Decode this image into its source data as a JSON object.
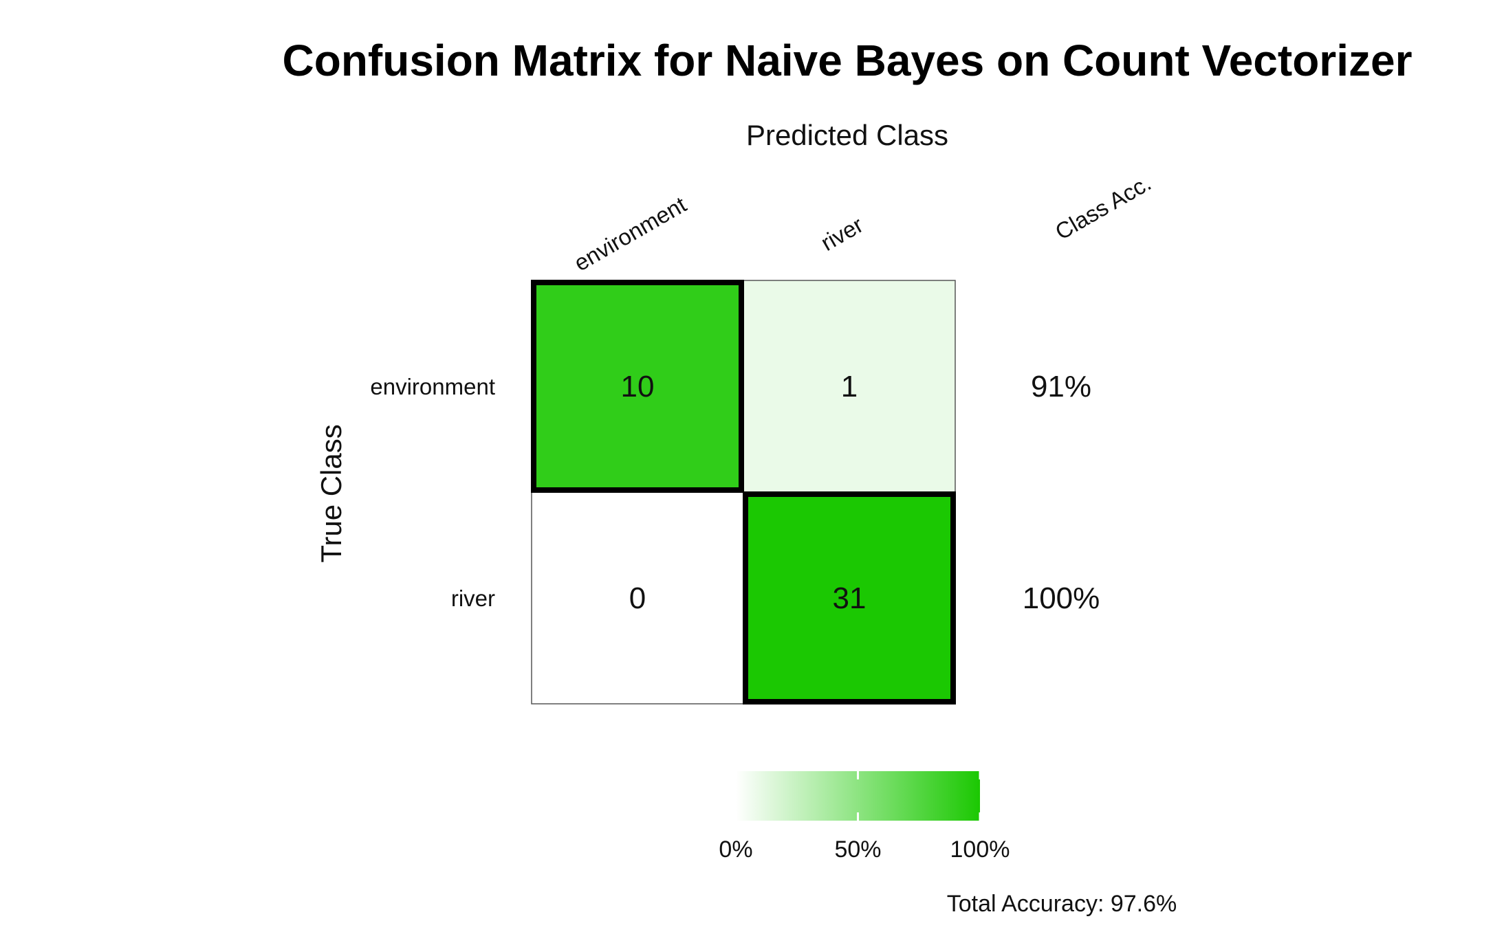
{
  "chart_data": {
    "type": "heatmap",
    "title": "Confusion Matrix for Naive Bayes on Count Vectorizer",
    "xlabel": "Predicted Class",
    "ylabel": "True Class",
    "row_labels": [
      "environment",
      "river"
    ],
    "column_labels": [
      "environment",
      "river"
    ],
    "class_acc_header": "Class Acc.",
    "matrix": [
      [
        10,
        1
      ],
      [
        0,
        31
      ]
    ],
    "cell_labels": [
      [
        "10",
        "1"
      ],
      [
        "0",
        "31"
      ]
    ],
    "row_fraction": [
      [
        0.909,
        0.091
      ],
      [
        0.0,
        1.0
      ]
    ],
    "class_accuracy": [
      "91%",
      "100%"
    ],
    "colorbar": {
      "range": [
        0,
        100
      ],
      "ticks": [
        0,
        50,
        100
      ],
      "tick_labels": [
        "0%",
        "50%",
        "100%"
      ],
      "low_color": "#ffffff",
      "high_color": "#1bc802"
    },
    "total_accuracy_text": "Total Accuracy: 97.6%",
    "highlight": "diagonal",
    "grid": false,
    "legend_position": "bottom"
  }
}
